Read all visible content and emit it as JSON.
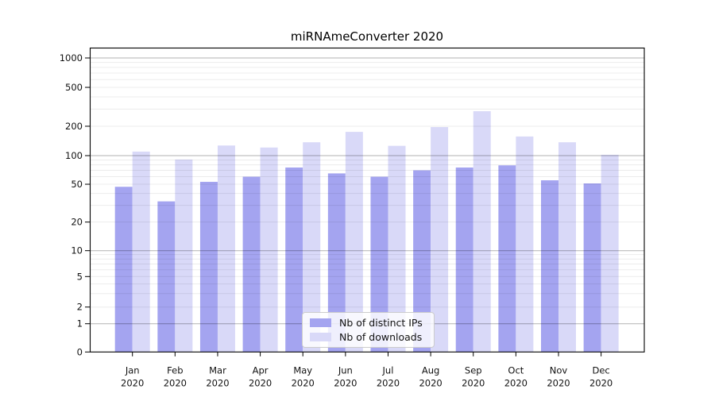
{
  "title": "miRNAmeConverter 2020",
  "legend": {
    "items": [
      {
        "label": "Nb of distinct IPs",
        "color": "#a4a4f0"
      },
      {
        "label": "Nb of downloads",
        "color": "#d9d9f8"
      }
    ]
  },
  "colors": {
    "distinct_ips": "#a4a4f0",
    "downloads": "#d9d9f8",
    "axis": "#000000",
    "major_grid": "#b3b3b3",
    "minor_grid": "#ededed"
  },
  "chart_data": {
    "type": "bar",
    "title": "miRNAmeConverter 2020",
    "categories": [
      "Jan 2020",
      "Feb 2020",
      "Mar 2020",
      "Apr 2020",
      "May 2020",
      "Jun 2020",
      "Jul 2020",
      "Aug 2020",
      "Sep 2020",
      "Oct 2020",
      "Nov 2020",
      "Dec 2020"
    ],
    "series": [
      {
        "name": "Nb of distinct IPs",
        "color": "#a4a4f0",
        "values": [
          47,
          33,
          53,
          60,
          75,
          65,
          60,
          70,
          75,
          79,
          55,
          51
        ]
      },
      {
        "name": "Nb of downloads",
        "color": "#d9d9f8",
        "values": [
          110,
          91,
          127,
          121,
          137,
          175,
          126,
          196,
          285,
          157,
          137,
          102
        ]
      }
    ],
    "xlabel": "",
    "ylabel": "",
    "yscale": "log (symlog-like, linear segment 0–1)",
    "yticks": [
      0,
      1,
      2,
      5,
      10,
      20,
      50,
      100,
      200,
      500,
      1000
    ],
    "ylim": [
      0,
      1265
    ],
    "grid": "horizontal major (1,10,100,1000) and log minor lines, drawn over bars",
    "legend_position": "inside, lower center"
  }
}
